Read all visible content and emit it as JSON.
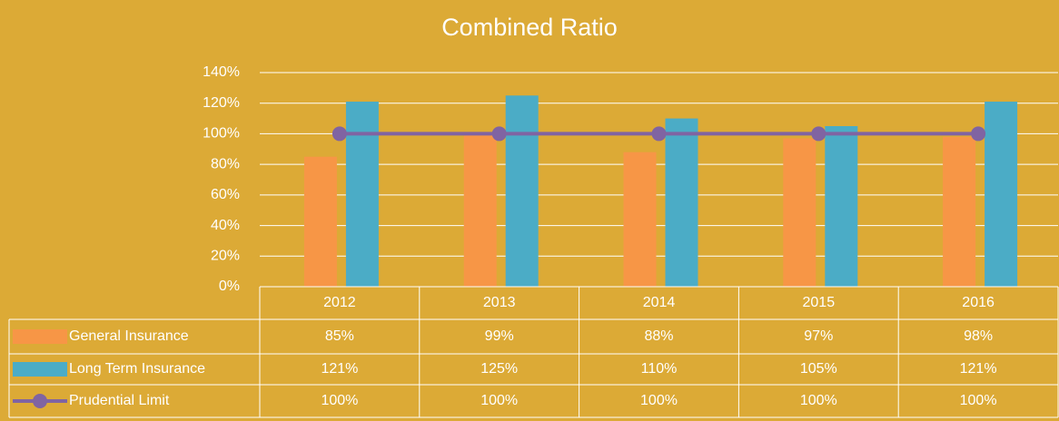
{
  "chart_data": {
    "type": "bar",
    "title": "Combined Ratio",
    "categories": [
      "2012",
      "2013",
      "2014",
      "2015",
      "2016"
    ],
    "series": [
      {
        "name": "General Insurance",
        "type": "bar",
        "color": "#f79646",
        "values": [
          85,
          99,
          88,
          97,
          98
        ],
        "value_labels": [
          "85%",
          "99%",
          "88%",
          "97%",
          "98%"
        ]
      },
      {
        "name": "Long Term Insurance",
        "type": "bar",
        "color": "#4bacc6",
        "values": [
          121,
          125,
          110,
          105,
          121
        ],
        "value_labels": [
          "121%",
          "125%",
          "110%",
          "105%",
          "121%"
        ]
      },
      {
        "name": "Prudential Limit",
        "type": "line",
        "color": "#8064a2",
        "values": [
          100,
          100,
          100,
          100,
          100
        ],
        "value_labels": [
          "100%",
          "100%",
          "100%",
          "100%",
          "100%"
        ]
      }
    ],
    "ylim": [
      0,
      140
    ],
    "yticks": [
      {
        "value": 0,
        "label": "0%"
      },
      {
        "value": 20,
        "label": "20%"
      },
      {
        "value": 40,
        "label": "40%"
      },
      {
        "value": 60,
        "label": "60%"
      },
      {
        "value": 80,
        "label": "80%"
      },
      {
        "value": 100,
        "label": "100%"
      },
      {
        "value": 120,
        "label": "120%"
      },
      {
        "value": 140,
        "label": "140%"
      }
    ],
    "grid": true
  }
}
